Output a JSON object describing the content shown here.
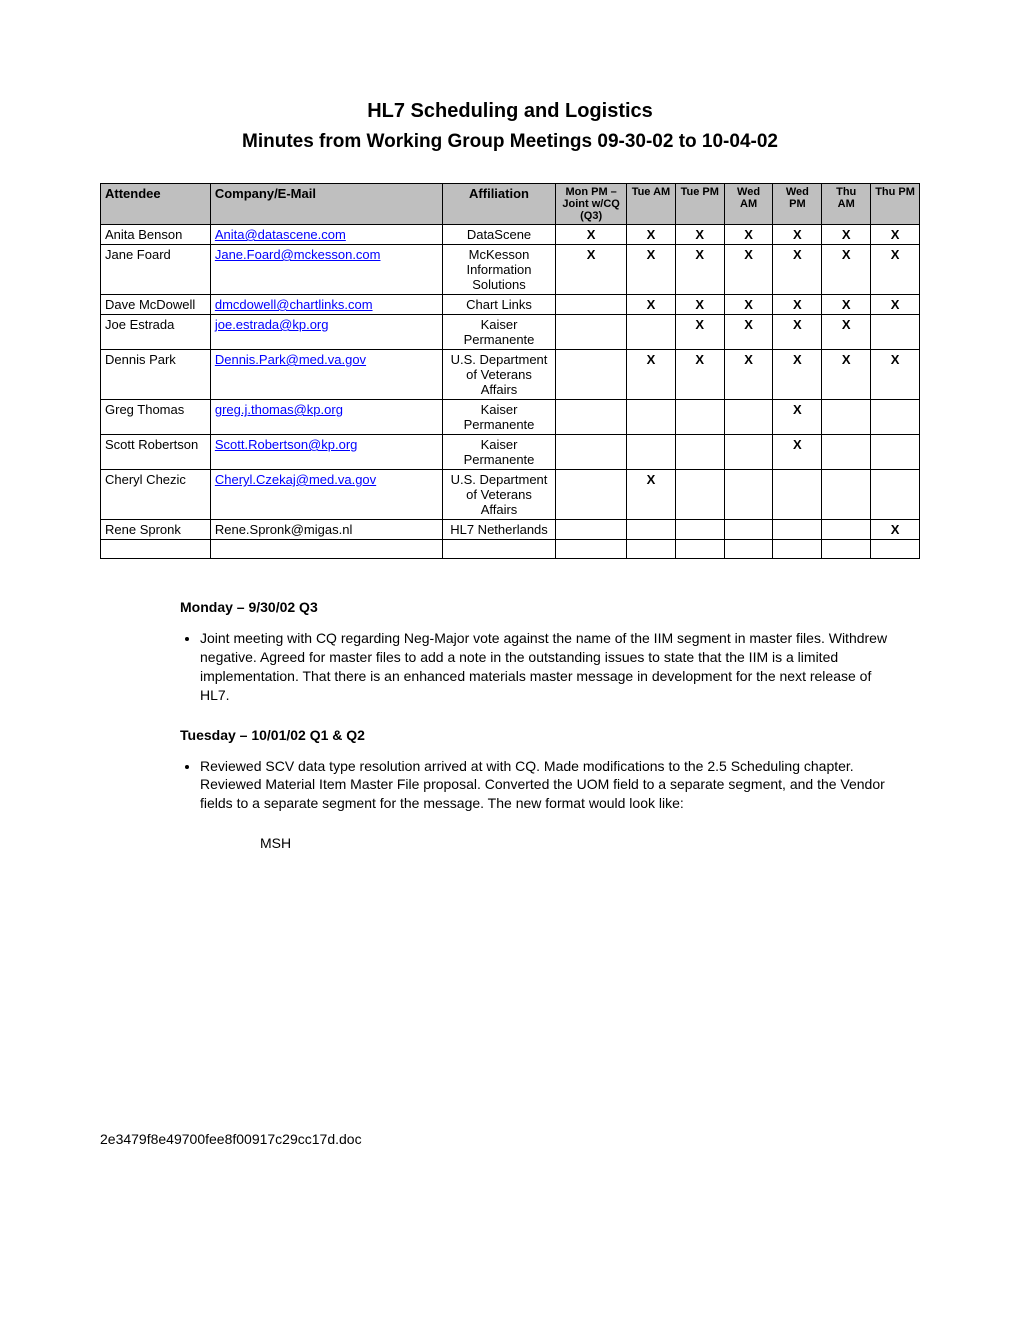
{
  "title": "HL7 Scheduling and Logistics",
  "subtitle": "Minutes from Working Group Meetings 09-30-02 to 10-04-02",
  "columns": [
    "Attendee",
    "Company/E-Mail",
    "Affiliation",
    "Mon PM – Joint w/CQ (Q3)",
    "Tue AM",
    "Tue PM",
    "Wed AM",
    "Wed PM",
    "Thu AM",
    "Thu PM"
  ],
  "rows": [
    {
      "attendee": "Anita Benson",
      "email": "Anita@datascene.com",
      "email_link": true,
      "affiliation": "DataScene",
      "marks": [
        "X",
        "X",
        "X",
        "X",
        "X",
        "X",
        "X"
      ]
    },
    {
      "attendee": "Jane Foard",
      "email": "Jane.Foard@mckesson.com",
      "email_link": true,
      "affiliation": "McKesson Information Solutions",
      "marks": [
        "X",
        "X",
        "X",
        "X",
        "X",
        "X",
        "X"
      ]
    },
    {
      "attendee": "Dave McDowell",
      "email": "dmcdowell@chartlinks.com",
      "email_link": true,
      "affiliation": "Chart Links",
      "marks": [
        "",
        "X",
        "X",
        "X",
        "X",
        "X",
        "X"
      ]
    },
    {
      "attendee": "Joe Estrada",
      "email": "joe.estrada@kp.org",
      "email_link": true,
      "affiliation": "Kaiser Permanente",
      "marks": [
        "",
        "",
        "X",
        "X",
        "X",
        "X",
        ""
      ]
    },
    {
      "attendee": "Dennis Park",
      "email": "Dennis.Park@med.va.gov",
      "email_link": true,
      "affiliation": "U.S. Department of Veterans Affairs",
      "marks": [
        "",
        "X",
        "X",
        "X",
        "X",
        "X",
        "X"
      ]
    },
    {
      "attendee": "Greg Thomas",
      "email": "greg.j.thomas@kp.org",
      "email_link": true,
      "affiliation": "Kaiser Permanente",
      "marks": [
        "",
        "",
        "",
        "",
        "X",
        "",
        ""
      ]
    },
    {
      "attendee": "Scott Robertson",
      "email": "Scott.Robertson@kp.org",
      "email_link": true,
      "affiliation": "Kaiser Permanente",
      "marks": [
        "",
        "",
        "",
        "",
        "X",
        "",
        ""
      ]
    },
    {
      "attendee": "Cheryl Chezic",
      "email": "Cheryl.Czekaj@med.va.gov",
      "email_link": true,
      "affiliation": "U.S. Department of Veterans Affairs",
      "marks": [
        "",
        "X",
        "",
        "",
        "",
        "",
        ""
      ]
    },
    {
      "attendee": "Rene Spronk",
      "email": "Rene.Spronk@migas.nl",
      "email_link": false,
      "affiliation": "HL7 Netherlands",
      "marks": [
        "",
        "",
        "",
        "",
        "",
        "",
        "X"
      ]
    }
  ],
  "sections": [
    {
      "heading": "Monday – 9/30/02 Q3",
      "bullet": "Joint meeting with CQ regarding Neg-Major vote against the name of the IIM segment in master files.  Withdrew negative.  Agreed for master files to add a note in the outstanding issues to state that the IIM is a limited implementation.  That there is an enhanced materials master message in development for the next release of HL7."
    },
    {
      "heading": "Tuesday – 10/01/02 Q1 & Q2",
      "bullet": "Reviewed SCV data type resolution arrived at with CQ.  Made modifications to the 2.5 Scheduling chapter.  Reviewed Material Item Master File proposal.  Converted the UOM field to a separate segment, and the Vendor fields to a separate segment for the message.  The new format would look like:",
      "sub": "MSH"
    }
  ],
  "footer": "2e3479f8e49700fee8f00917c29cc17d.doc"
}
